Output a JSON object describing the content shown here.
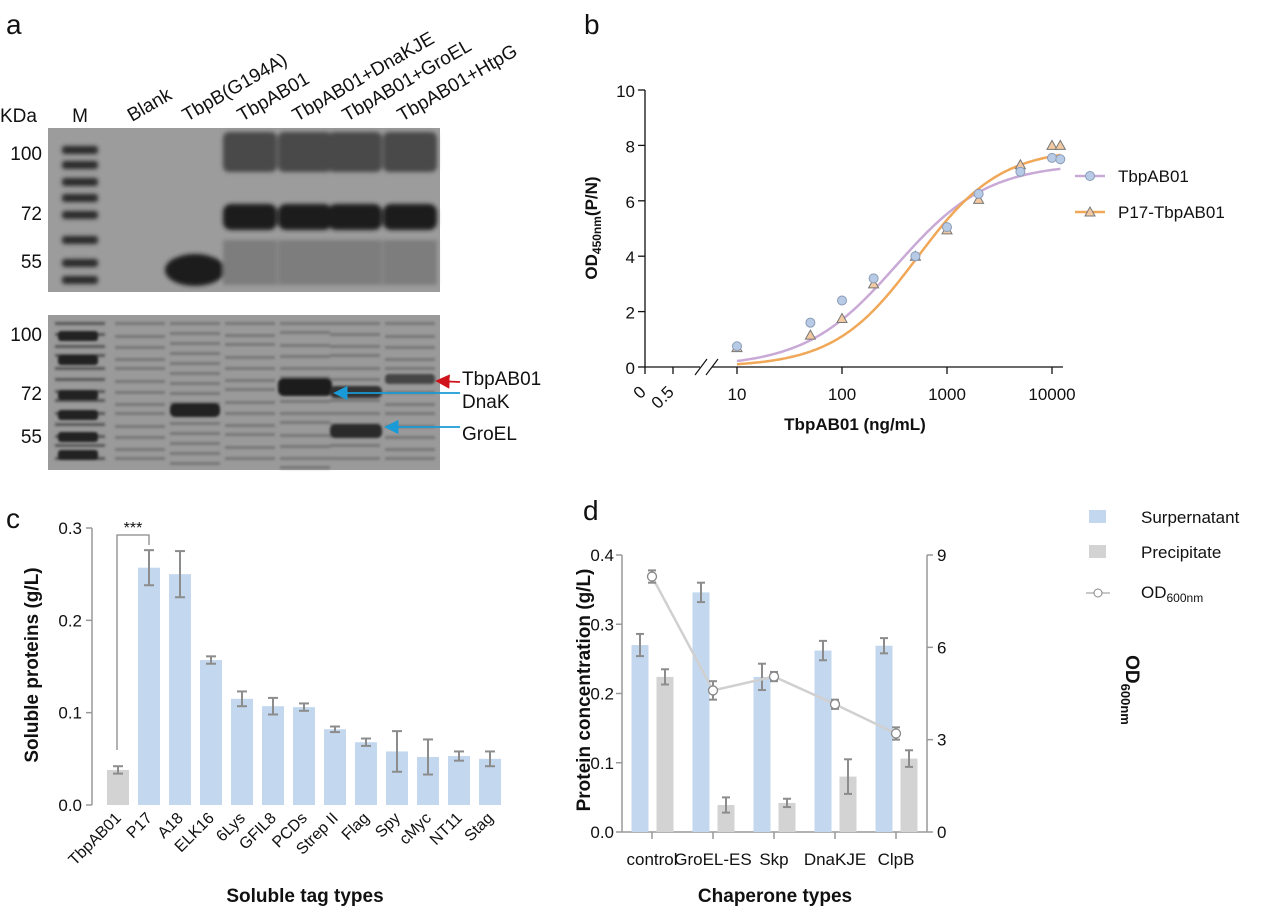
{
  "panels": {
    "a": "a",
    "b": "b",
    "c": "c",
    "d": "d"
  },
  "gel": {
    "unit_label": "KDa",
    "lanes": [
      "M",
      "Blank",
      "TbpB(G194A)",
      "TbpAB01",
      "TbpAB01+DnaKJE",
      "TbpAB01+GroEL",
      "TbpAB01+HtpG"
    ],
    "top_markers": [
      "100",
      "72",
      "55"
    ],
    "bottom_markers": [
      "100",
      "72",
      "55"
    ],
    "annotations": [
      {
        "label": "TbpAB01",
        "color": "#d0121b"
      },
      {
        "label": "DnaK",
        "color": "#1a9ad6"
      },
      {
        "label": "GroEL",
        "color": "#1a9ad6"
      }
    ]
  },
  "chart_data": [
    {
      "panel": "b",
      "type": "scatter",
      "xlabel": "TbpAB01 (ng/mL)",
      "ylabel": "OD450nm(P/N)",
      "ylabel_main": "OD",
      "ylabel_sub": "450nm",
      "ylabel_tail": "(P/N)",
      "x_scale": "log (broken axis)",
      "x_ticks": [
        "0",
        "0.5",
        "10",
        "100",
        "1000",
        "10000"
      ],
      "y_ticks": [
        "0",
        "2",
        "4",
        "6",
        "8",
        "10"
      ],
      "ylim": [
        0,
        10
      ],
      "legend_position": "right",
      "series": [
        {
          "name": "TbpAB01",
          "marker": "circle",
          "color": "#c9a9d6",
          "marker_color": "#b8cbe6",
          "x": [
            10,
            50,
            100,
            200,
            500,
            1000,
            2000,
            5000,
            10000,
            12000
          ],
          "y": [
            0.75,
            1.6,
            2.4,
            3.2,
            4.0,
            5.05,
            6.25,
            7.05,
            7.55,
            7.5
          ]
        },
        {
          "name": "P17-TbpAB01",
          "marker": "triangle",
          "color": "#f0a858",
          "marker_color": "#f2c9a0",
          "x": [
            10,
            50,
            100,
            200,
            500,
            1000,
            2000,
            5000,
            10000,
            12000
          ],
          "y": [
            0.7,
            1.15,
            1.75,
            3.0,
            4.0,
            4.95,
            6.05,
            7.3,
            8.0,
            8.0
          ]
        }
      ]
    },
    {
      "panel": "c",
      "type": "bar",
      "xlabel": "Soluble tag types",
      "ylabel": "Soluble proteins (g/L)",
      "y_ticks": [
        "0.0",
        "0.1",
        "0.2",
        "0.3"
      ],
      "ylim": [
        0,
        0.3
      ],
      "significance": "***",
      "categories": [
        "TbpAB01",
        "P17",
        "A18",
        "ELK16",
        "6Lys",
        "GFIL8",
        "PCDs",
        "Strep II",
        "Flag",
        "Spy",
        "cMyc",
        "NT11",
        "Stag"
      ],
      "values": [
        0.038,
        0.257,
        0.25,
        0.157,
        0.115,
        0.107,
        0.106,
        0.082,
        0.068,
        0.058,
        0.052,
        0.053,
        0.05
      ],
      "errors": [
        0.004,
        0.019,
        0.025,
        0.004,
        0.008,
        0.009,
        0.004,
        0.003,
        0.004,
        0.022,
        0.019,
        0.005,
        0.008
      ],
      "colors": {
        "control": "#d3d3d3",
        "tag": "#c3d7ef",
        "error": "#8c8c8c"
      }
    },
    {
      "panel": "d",
      "type": "bar",
      "xlabel": "Chaperone types",
      "ylabel": "Protein concentration (g/L)",
      "y2label_main": "OD",
      "y2label_sub": "600nm",
      "y_ticks": [
        "0.0",
        "0.1",
        "0.2",
        "0.3",
        "0.4"
      ],
      "y2_ticks": [
        "0",
        "3",
        "6",
        "9"
      ],
      "ylim": [
        0,
        0.4
      ],
      "y2lim": [
        0,
        9
      ],
      "legend_position": "top-right",
      "categories": [
        "control",
        "GroEL-ES",
        "Skp",
        "DnaKJE",
        "ClpB"
      ],
      "series": [
        {
          "name": "Surpernatant",
          "type": "bar",
          "color": "#c3d7ef",
          "values": [
            0.27,
            0.346,
            0.224,
            0.262,
            0.269
          ],
          "errors": [
            0.016,
            0.014,
            0.019,
            0.014,
            0.011
          ]
        },
        {
          "name": "Precipitate",
          "type": "bar",
          "color": "#d3d3d3",
          "values": [
            0.224,
            0.039,
            0.042,
            0.08,
            0.106
          ],
          "errors": [
            0.011,
            0.011,
            0.006,
            0.025,
            0.012
          ]
        },
        {
          "name": "OD600nm",
          "name_main": "OD",
          "name_sub": "600nm",
          "type": "line",
          "axis": "right",
          "color": "#d0d0d0",
          "values": [
            8.3,
            4.6,
            5.05,
            4.15,
            3.2
          ],
          "errors": [
            0.2,
            0.3,
            0.15,
            0.15,
            0.2
          ]
        }
      ]
    }
  ]
}
